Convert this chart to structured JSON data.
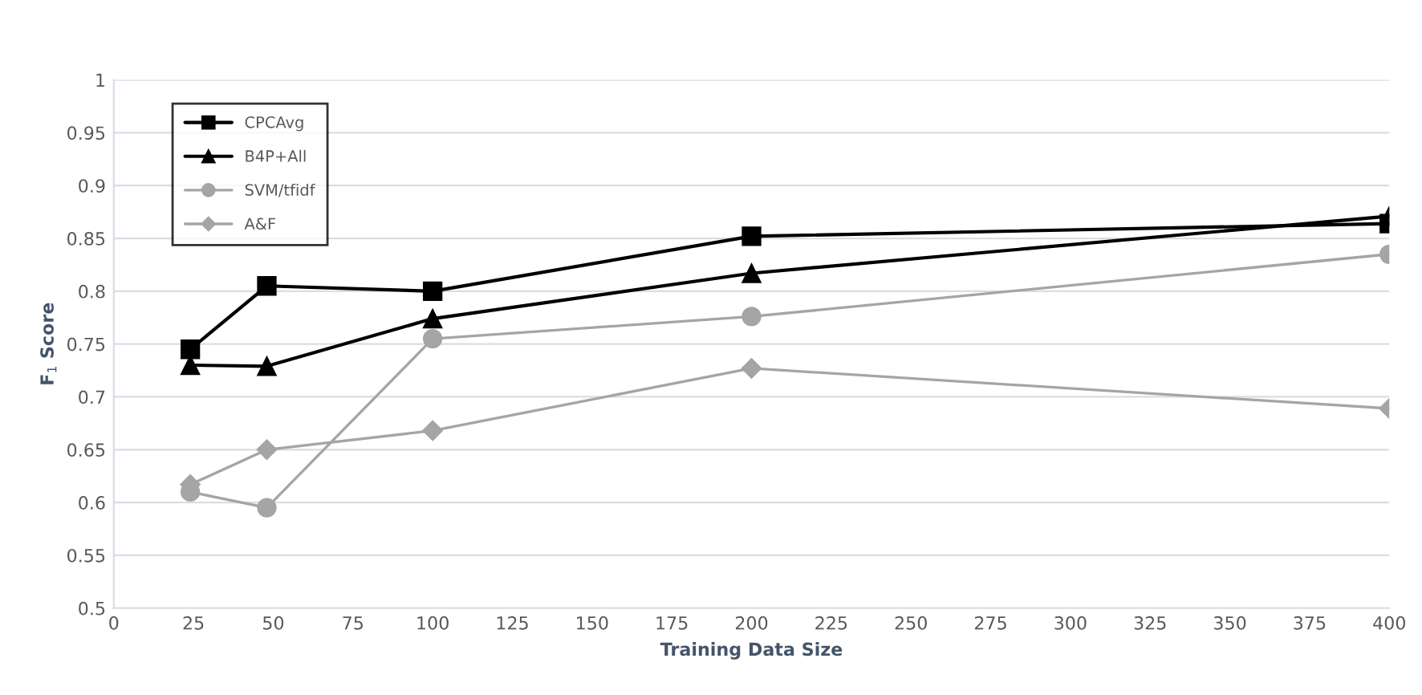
{
  "chart_data": {
    "type": "line",
    "xlabel": "Training Data Size",
    "ylabel": "F$_{1}$ Score",
    "x": [
      24,
      48,
      100,
      200,
      400
    ],
    "series": [
      {
        "name": "CPCAvg",
        "color": "#000000",
        "marker": "square",
        "values": [
          0.745,
          0.805,
          0.8,
          0.852,
          0.864
        ]
      },
      {
        "name": "B4P+All",
        "color": "#000000",
        "marker": "triangle",
        "values": [
          0.73,
          0.729,
          0.774,
          0.817,
          0.871
        ]
      },
      {
        "name": "SVM/tfidf",
        "color": "#a5a5a5",
        "marker": "circle",
        "values": [
          0.61,
          0.595,
          0.755,
          0.776,
          0.835
        ]
      },
      {
        "name": "A&F",
        "color": "#a5a5a5",
        "marker": "diamond",
        "values": [
          0.617,
          0.65,
          0.668,
          0.727,
          0.689
        ]
      }
    ],
    "xlim": [
      0,
      400
    ],
    "xticks": [
      0,
      25,
      50,
      75,
      100,
      125,
      150,
      175,
      200,
      225,
      250,
      275,
      300,
      325,
      350,
      375,
      400
    ],
    "ylim": [
      0.5,
      1
    ],
    "yticks": [
      0.5,
      0.55,
      0.6,
      0.65,
      0.7,
      0.75,
      0.8,
      0.85,
      0.9,
      0.95,
      1
    ],
    "grid": "y",
    "legend": "top left",
    "line_style": "solid"
  }
}
